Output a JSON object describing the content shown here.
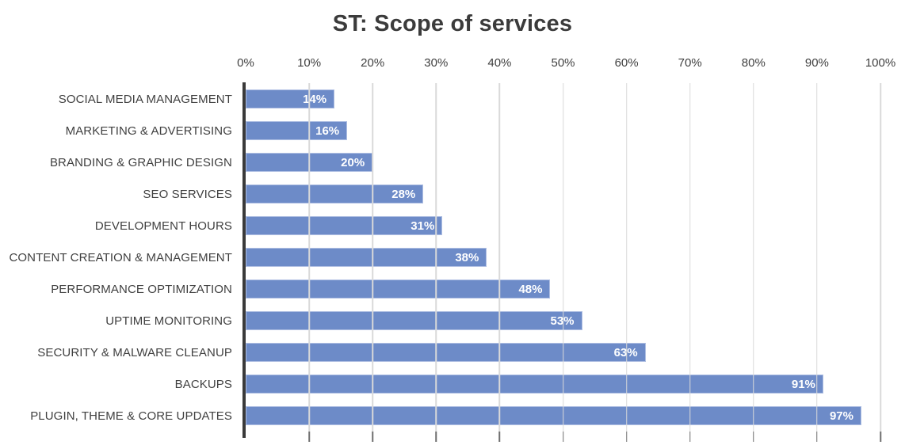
{
  "chart_data": {
    "type": "bar",
    "orientation": "horizontal",
    "title": "ST: Scope of services",
    "categories": [
      "SOCIAL MEDIA MANAGEMENT",
      "MARKETING & ADVERTISING",
      "BRANDING & GRAPHIC DESIGN",
      "SEO SERVICES",
      "DEVELOPMENT HOURS",
      "CONTENT CREATION & MANAGEMENT",
      "PERFORMANCE OPTIMIZATION",
      "UPTIME MONITORING",
      "SECURITY & MALWARE CLEANUP",
      "BACKUPS",
      "PLUGIN, THEME & CORE UPDATES"
    ],
    "values": [
      14,
      16,
      20,
      28,
      31,
      38,
      48,
      53,
      63,
      91,
      97
    ],
    "value_labels": [
      "14%",
      "16%",
      "20%",
      "28%",
      "31%",
      "38%",
      "48%",
      "53%",
      "63%",
      "91%",
      "97%"
    ],
    "xlabel": "",
    "ylabel": "",
    "axis": {
      "position": "top",
      "min": 0,
      "max": 100,
      "step": 10,
      "tick_labels": [
        "0%",
        "10%",
        "20%",
        "30%",
        "40%",
        "50%",
        "60%",
        "70%",
        "80%",
        "90%",
        "100%"
      ]
    },
    "grid": true,
    "legend": false,
    "colors": {
      "bar": "#6d8bc8",
      "bar_edge": "#aebee2",
      "value_label": "#ffffff",
      "gridline": "#d9d9d9",
      "axis_line": "#3a3a3a",
      "tick_mark": "#6e6e6e",
      "title_text": "#3b3b3b",
      "category_text": "#404040",
      "tick_text": "#404040"
    }
  }
}
